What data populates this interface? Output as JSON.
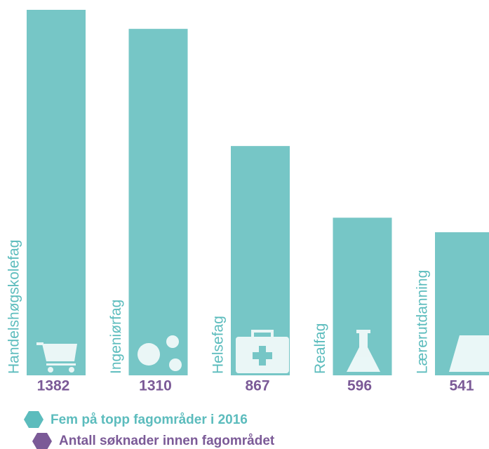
{
  "chart_data": {
    "type": "bar",
    "categories": [
      "Handelshøgskolefag",
      "Ingeniørfag",
      "Helsefag",
      "Realfag",
      "Lærerutdanning"
    ],
    "values": [
      1382,
      1310,
      867,
      596,
      541
    ],
    "color": "#76c6c6",
    "value_label_color": "#7b5a97",
    "legend": [
      {
        "name": "Fem på topp fagområder i 2016",
        "color": "#5cbcbd"
      },
      {
        "name": "Antall søknader innen fagområdet",
        "color": "#7b5a97"
      }
    ]
  }
}
